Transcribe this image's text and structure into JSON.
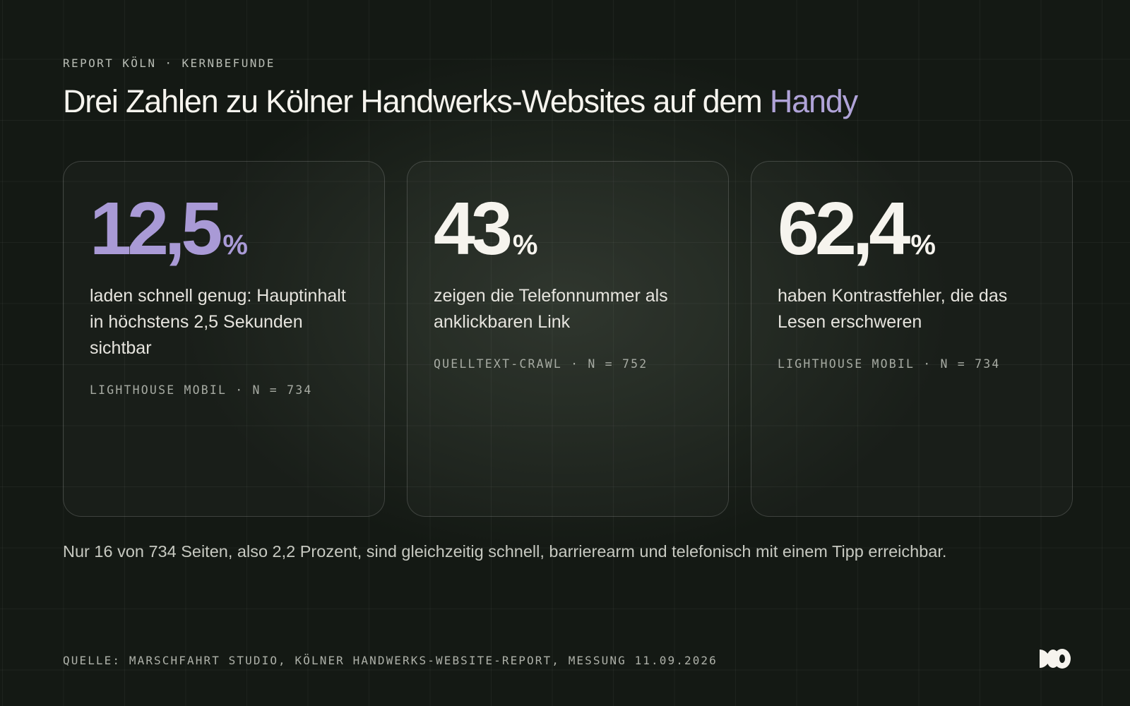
{
  "header": {
    "eyebrow": "REPORT KÖLN · KERNBEFUNDE",
    "title_main": "Drei Zahlen zu Kölner Handwerks-Websites auf dem ",
    "title_accent": "Handy"
  },
  "cards": [
    {
      "value": "12,5",
      "unit": "%",
      "description": "laden schnell genug: Hauptinhalt in höchstens 2,5 Sekunden sichtbar",
      "source": "LIGHTHOUSE MOBIL · N = 734"
    },
    {
      "value": "43",
      "unit": "%",
      "description": "zeigen die Telefonnummer als anklickbaren Link",
      "source": "QUELLTEXT-CRAWL · N = 752"
    },
    {
      "value": "62,4",
      "unit": "%",
      "description": "haben Kontrastfehler, die das Lesen erschweren",
      "source": "LIGHTHOUSE MOBIL · N = 734"
    }
  ],
  "summary": "Nur 16 von 734 Seiten, also 2,2 Prozent, sind gleichzeitig schnell, barrierearm und telefonisch mit einem Tipp erreichbar.",
  "footer": {
    "source": "QUELLE: MARSCHFAHRT STUDIO, KÖLNER HANDWERKS-WEBSITE-REPORT, MESSUNG 11.09.2026",
    "logo_icon": "brand-logo-icon"
  },
  "colors": {
    "background": "#141914",
    "accent": "#a99ad6",
    "text": "#f6f4ee"
  }
}
